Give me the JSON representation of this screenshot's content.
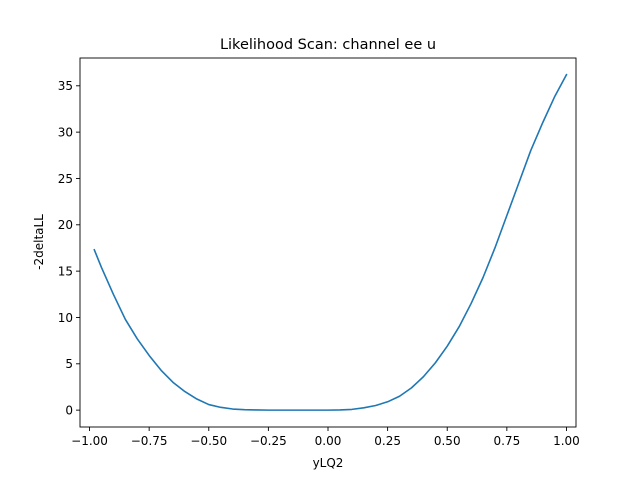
{
  "chart_data": {
    "type": "line",
    "title": "Likelihood Scan: channel ee u",
    "xlabel": "yLQ2",
    "ylabel": "-2deltaLL",
    "xlim": [
      -1.04,
      1.04
    ],
    "ylim": [
      -1.82,
      38.0
    ],
    "xticks": [
      -1.0,
      -0.75,
      -0.5,
      -0.25,
      0.0,
      0.25,
      0.5,
      0.75,
      1.0
    ],
    "xtick_labels": [
      "−1.00",
      "−0.75",
      "−0.50",
      "−0.25",
      "0.00",
      "0.25",
      "0.50",
      "0.75",
      "1.00"
    ],
    "yticks": [
      0,
      5,
      10,
      15,
      20,
      25,
      30,
      35
    ],
    "ytick_labels": [
      "0",
      "5",
      "10",
      "15",
      "20",
      "25",
      "30",
      "35"
    ],
    "grid": false,
    "line_color": "#1f77b4",
    "series": [
      {
        "x": [
          -0.98,
          -0.95,
          -0.9,
          -0.85,
          -0.8,
          -0.75,
          -0.7,
          -0.65,
          -0.6,
          -0.55,
          -0.5,
          -0.45,
          -0.4,
          -0.35,
          -0.3,
          -0.25,
          -0.2,
          -0.15,
          -0.1,
          -0.05,
          0.0,
          0.05,
          0.1,
          0.15,
          0.2,
          0.25,
          0.3,
          0.35,
          0.4,
          0.45,
          0.5,
          0.55,
          0.6,
          0.65,
          0.7,
          0.75,
          0.8,
          0.85,
          0.9,
          0.95,
          1.0
        ],
        "y": [
          17.3,
          15.4,
          12.5,
          9.8,
          7.7,
          5.9,
          4.3,
          3.0,
          2.0,
          1.2,
          0.6,
          0.3,
          0.12,
          0.05,
          0.02,
          0.0,
          0.0,
          0.0,
          0.0,
          0.0,
          0.0,
          0.02,
          0.08,
          0.25,
          0.5,
          0.9,
          1.5,
          2.4,
          3.6,
          5.1,
          6.9,
          9.0,
          11.5,
          14.3,
          17.5,
          21.0,
          24.5,
          28.0,
          31.0,
          33.8,
          36.2
        ]
      }
    ]
  }
}
